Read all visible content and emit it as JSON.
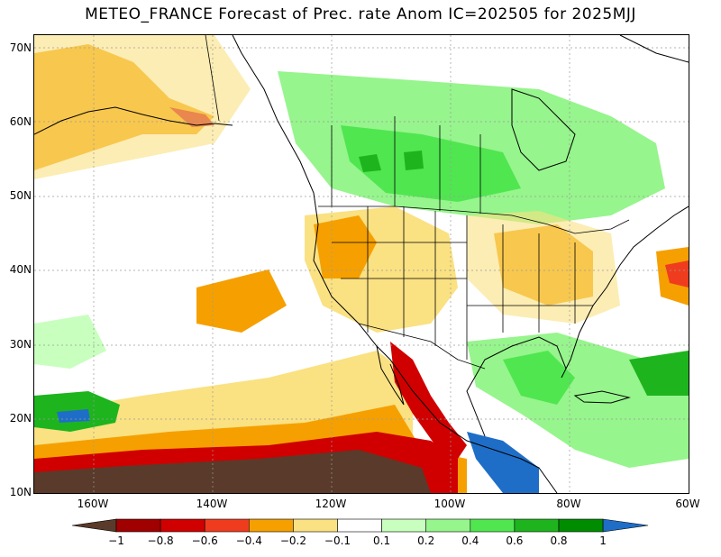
{
  "title": "METEO_FRANCE Forecast of Prec. rate Anom IC=202505 for 2025MJJ",
  "lat_labels": [
    "70N",
    "60N",
    "50N",
    "40N",
    "30N",
    "20N",
    "10N"
  ],
  "lon_labels": [
    "160W",
    "140W",
    "120W",
    "100W",
    "80W",
    "60W"
  ],
  "colorbar": {
    "labels": [
      "−1",
      "−0.8",
      "−0.6",
      "−0.4",
      "−0.2",
      "−0.1",
      "0.1",
      "0.2",
      "0.4",
      "0.6",
      "0.8",
      "1"
    ],
    "colors": [
      "#5a3a2a",
      "#a00000",
      "#d00000",
      "#f03c1e",
      "#f5a000",
      "#fae182",
      "#ffffff",
      "#c8ffbe",
      "#96f58c",
      "#50e650",
      "#1eb41e",
      "#008c00",
      "#1e6ec8"
    ]
  },
  "palette": {
    "dry_extreme": "#5a3a2a",
    "dry_strong": "#c80000",
    "dry_moderate": "#f03c1e",
    "dry": "#f5a000",
    "dry_light": "#fae182",
    "wet_light": "#c8ffbe",
    "wet": "#96f58c",
    "wet_moderate": "#50e650",
    "wet_strong": "#1eb41e",
    "wet_extreme": "#1e6ec8"
  }
}
